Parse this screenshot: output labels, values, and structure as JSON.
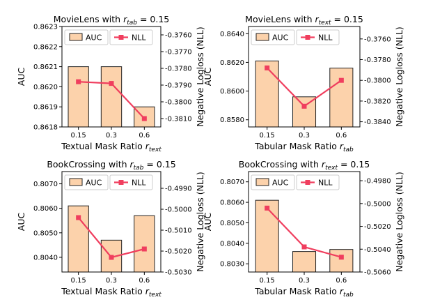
{
  "colors": {
    "bar_fill": "#fcd2ab",
    "bar_edge": "#222222",
    "line": "#f03e5e",
    "axis": "#000000"
  },
  "chart_data": [
    {
      "type": "bar",
      "title_main": "MovieLens with ",
      "title_var": "r",
      "title_sub": "tab",
      "title_val": " = 0.15",
      "categories": [
        "0.15",
        "0.3",
        "0.6"
      ],
      "xlabel_main": "Textual Mask Ratio ",
      "xlabel_var": "r",
      "xlabel_sub": "text",
      "ylabel": "AUC",
      "ylabel_right": "Negative Logloss (NLL)",
      "legend": [
        "AUC",
        "NLL"
      ],
      "legend_position": "upper",
      "series": [
        {
          "name": "AUC",
          "type": "bar",
          "axis": "left",
          "values": [
            0.8621,
            0.8621,
            0.8619
          ]
        },
        {
          "name": "NLL",
          "type": "line",
          "axis": "right",
          "values": [
            -0.3788,
            -0.3789,
            -0.381
          ]
        }
      ],
      "ylim": [
        0.8618,
        0.8623
      ],
      "yticks": [
        "0.8618",
        "0.8619",
        "0.8620",
        "0.8621",
        "0.8622",
        "0.8623"
      ],
      "ylim_right": [
        -0.3815,
        -0.3755
      ],
      "yticks_right": [
        "-0.3810",
        "-0.3800",
        "-0.3790",
        "-0.3780",
        "-0.3770",
        "-0.3760"
      ]
    },
    {
      "type": "bar",
      "title_main": "MovieLens with ",
      "title_var": "r",
      "title_sub": "text",
      "title_val": " = 0.15",
      "categories": [
        "0.15",
        "0.3",
        "0.6"
      ],
      "xlabel_main": "Tabular Mask Ratio ",
      "xlabel_var": "r",
      "xlabel_sub": "tab",
      "ylabel": "AUC",
      "ylabel_right": "Negative Logloss (NLL)",
      "legend": [
        "AUC",
        "NLL"
      ],
      "legend_position": "upper",
      "series": [
        {
          "name": "AUC",
          "type": "bar",
          "axis": "left",
          "values": [
            0.8621,
            0.8596,
            0.8616
          ]
        },
        {
          "name": "NLL",
          "type": "line",
          "axis": "right",
          "values": [
            -0.3788,
            -0.3825,
            -0.38
          ]
        }
      ],
      "ylim": [
        0.8575,
        0.8645
      ],
      "yticks": [
        "0.8580",
        "0.8600",
        "0.8620",
        "0.8640"
      ],
      "ylim_right": [
        -0.3845,
        -0.3748
      ],
      "yticks_right": [
        "-0.3840",
        "-0.3820",
        "-0.3800",
        "-0.3780",
        "-0.3760"
      ]
    },
    {
      "type": "bar",
      "title_main": "BookCrossing with ",
      "title_var": "r",
      "title_sub": "tab",
      "title_val": " = 0.15",
      "categories": [
        "0.15",
        "0.3",
        "0.6"
      ],
      "xlabel_main": "Textual Mask Ratio ",
      "xlabel_var": "r",
      "xlabel_sub": "text",
      "ylabel": "AUC",
      "ylabel_right": "Negative Logloss (NLL)",
      "legend": [
        "AUC",
        "NLL"
      ],
      "legend_position": "upper",
      "series": [
        {
          "name": "AUC",
          "type": "bar",
          "axis": "left",
          "values": [
            0.8061,
            0.8047,
            0.8057
          ]
        },
        {
          "name": "NLL",
          "type": "line",
          "axis": "right",
          "values": [
            -0.5004,
            -0.5023,
            -0.5019
          ]
        }
      ],
      "ylim": [
        0.8034,
        0.8075
      ],
      "yticks": [
        "0.8040",
        "0.8050",
        "0.8060",
        "0.8070"
      ],
      "ylim_right": [
        -0.503,
        -0.4982
      ],
      "yticks_right": [
        "-0.5030",
        "-0.5020",
        "-0.5010",
        "-0.5000",
        "-0.4990"
      ]
    },
    {
      "type": "bar",
      "title_main": "BookCrossing with ",
      "title_var": "r",
      "title_sub": "text",
      "title_val": " = 0.15",
      "categories": [
        "0.15",
        "0.3",
        "0.6"
      ],
      "xlabel_main": "Tabular Mask Ratio ",
      "xlabel_var": "r",
      "xlabel_sub": "tab",
      "ylabel": "AUC",
      "ylabel_right": "Negative Logloss (NLL)",
      "legend": [
        "AUC",
        "NLL"
      ],
      "legend_position": "upper",
      "series": [
        {
          "name": "AUC",
          "type": "bar",
          "axis": "left",
          "values": [
            0.8061,
            0.8036,
            0.8037
          ]
        },
        {
          "name": "NLL",
          "type": "line",
          "axis": "right",
          "values": [
            -0.5004,
            -0.5038,
            -0.5047
          ]
        }
      ],
      "ylim": [
        0.8026,
        0.8075
      ],
      "yticks": [
        "0.8030",
        "0.8040",
        "0.8050",
        "0.8060",
        "0.8070"
      ],
      "ylim_right": [
        -0.506,
        -0.4972
      ],
      "yticks_right": [
        "-0.5060",
        "-0.5040",
        "-0.5020",
        "-0.5000",
        "-0.4980"
      ]
    }
  ]
}
